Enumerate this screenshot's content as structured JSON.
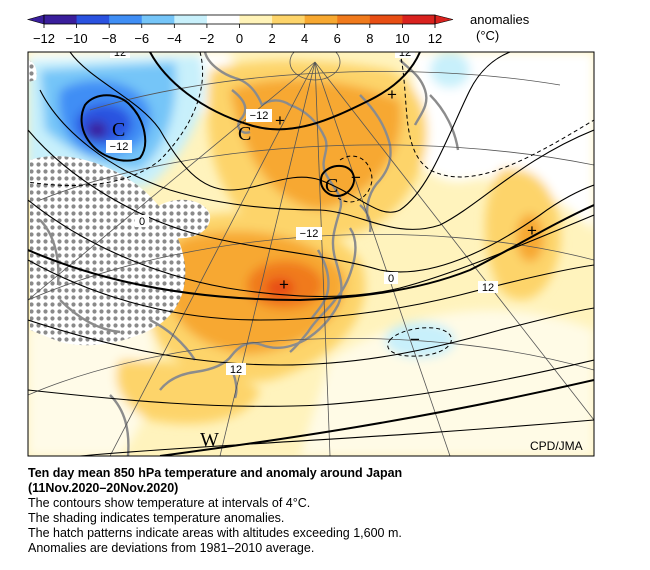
{
  "legend": {
    "unit_title": "anomalies",
    "unit": "(°C)",
    "ticks": [
      "−12",
      "−10",
      "−8",
      "−6",
      "−4",
      "−2",
      "0",
      "2",
      "4",
      "6",
      "8",
      "10",
      "12"
    ],
    "colors": [
      "#3a1e9c",
      "#2a52e0",
      "#3f8ef5",
      "#75c5f8",
      "#c8f0fb",
      "#ffffff",
      "#fff3b8",
      "#fdd46a",
      "#f7a830",
      "#f07a1c",
      "#e84e14",
      "#d9221e"
    ]
  },
  "map": {
    "contour_labels": [
      "12",
      "12",
      "−12",
      "−12",
      "−12",
      "0",
      "0",
      "12",
      "12"
    ],
    "center_marks": [
      "C",
      "C",
      "C",
      "W"
    ],
    "anomaly_signs": [
      "+",
      "+",
      "+",
      "+",
      "−",
      "−"
    ],
    "credit": "CPD/JMA"
  },
  "caption": {
    "title_line1": "Ten day mean 850 hPa temperature and anomaly around Japan",
    "title_line2": "(11Nov.2020–20Nov.2020)",
    "lines": [
      "The contours show temperature at intervals of 4°C.",
      "The shading indicates temperature anomalies.",
      "The hatch patterns indicate areas with altitudes exceeding 1,600 m.",
      "Anomalies are deviations from 1981–2010 average."
    ]
  }
}
